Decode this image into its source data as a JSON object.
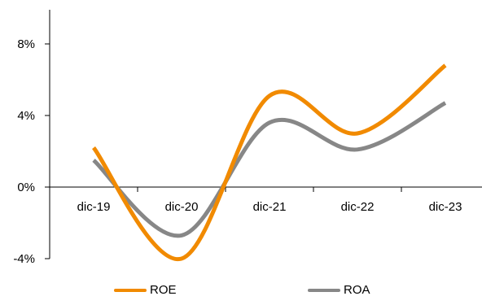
{
  "chart_data": {
    "type": "line",
    "categories": [
      "dic-19",
      "dic-20",
      "dic-21",
      "dic-22",
      "dic-23"
    ],
    "y_tick_labels": [
      "8%",
      "4%",
      "0%",
      "-4%"
    ],
    "y_ticks": [
      8,
      4,
      0,
      -4
    ],
    "ylim": [
      -4,
      10
    ],
    "y_unit": "%",
    "smooth": true,
    "grid": false,
    "legend_position": "bottom",
    "series": [
      {
        "name": "ROE",
        "color": "#F18A00",
        "values": [
          2.2,
          -4.0,
          5.1,
          3.0,
          6.8
        ]
      },
      {
        "name": "ROA",
        "color": "#878787",
        "values": [
          1.5,
          -2.7,
          3.6,
          2.1,
          4.7
        ]
      }
    ]
  }
}
